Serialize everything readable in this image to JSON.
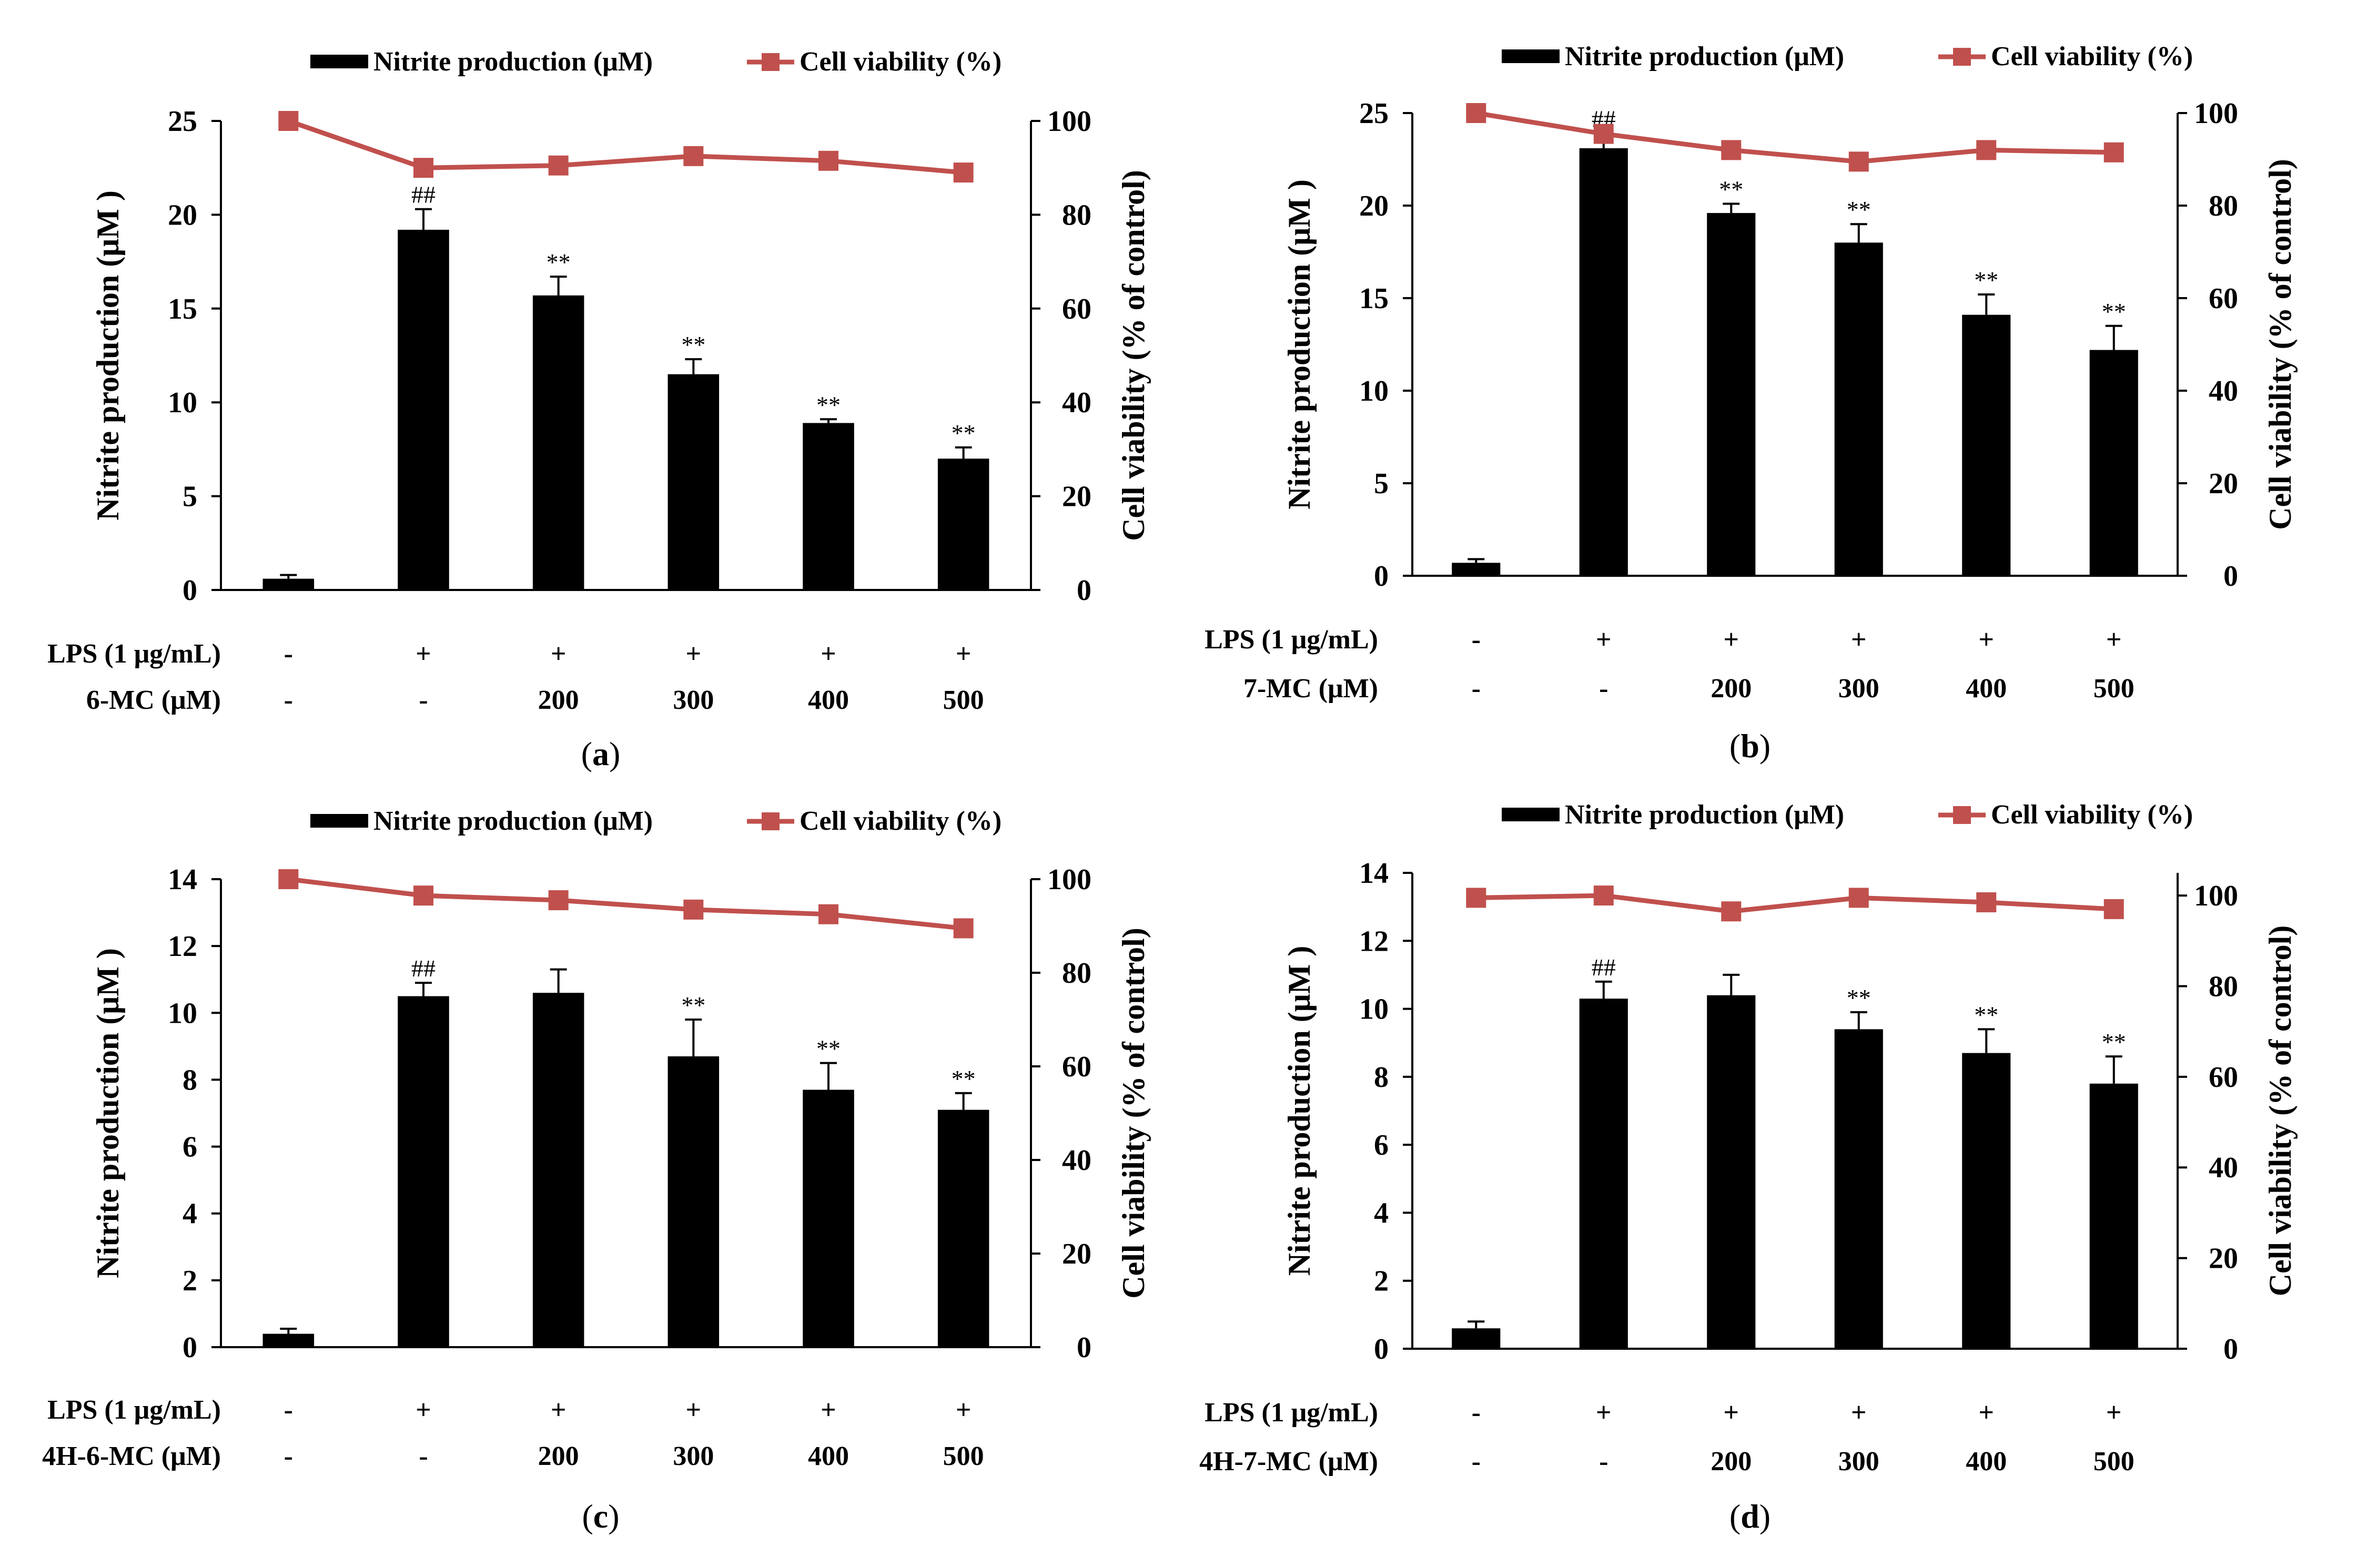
{
  "legend": {
    "bar_label": "Nitrite production (μM)",
    "line_label": "Cell viability (%)"
  },
  "colors": {
    "bar": "#000000",
    "line": "#c0504d",
    "axis": "#000000"
  },
  "chart_data": [
    {
      "type": "bar+line",
      "caption": "a",
      "ylabel_left": "Nitrite production (μM )",
      "ylabel_right": "Cell viability (% of control)",
      "ylim_left": [
        0,
        25
      ],
      "yticks_left": [
        0,
        5,
        10,
        15,
        20,
        25
      ],
      "ylim_right": [
        0,
        100
      ],
      "yticks_right": [
        0,
        20,
        40,
        60,
        80,
        100
      ],
      "row1_label": "LPS (1 μg/mL)",
      "row1": [
        "-",
        "+",
        "+",
        "+",
        "+",
        "+"
      ],
      "row2_label": "6-MC (μM)",
      "row2": [
        "-",
        "-",
        "200",
        "300",
        "400",
        "500"
      ],
      "bars": [
        0.6,
        19.2,
        15.7,
        11.5,
        8.9,
        7.0
      ],
      "bar_err": [
        0.2,
        1.1,
        1.0,
        0.8,
        0.2,
        0.6
      ],
      "bar_marks": [
        "",
        "##",
        "**",
        "**",
        "**",
        "**"
      ],
      "line": [
        100,
        90,
        90.5,
        92.5,
        91.5,
        89
      ],
      "line_err": [
        0,
        0,
        0,
        0,
        1.8,
        0
      ]
    },
    {
      "type": "bar+line",
      "caption": "b",
      "ylabel_left": "Nitrite production (μM )",
      "ylabel_right": "Cell viability (% of control)",
      "ylim_left": [
        0,
        25
      ],
      "yticks_left": [
        0,
        5,
        10,
        15,
        20,
        25
      ],
      "ylim_right": [
        0,
        100
      ],
      "yticks_right": [
        0,
        20,
        40,
        60,
        80,
        100
      ],
      "row1_label": "LPS (1 μg/mL)",
      "row1": [
        "-",
        "+",
        "+",
        "+",
        "+",
        "+"
      ],
      "row2_label": "7-MC (μM)",
      "row2": [
        "-",
        "-",
        "200",
        "300",
        "400",
        "500"
      ],
      "bars": [
        0.7,
        23.1,
        19.6,
        18.0,
        14.1,
        12.2
      ],
      "bar_err": [
        0.2,
        0.8,
        0.5,
        1.0,
        1.1,
        1.3
      ],
      "bar_marks": [
        "",
        "##",
        "**",
        "**",
        "**",
        "**"
      ],
      "line": [
        100,
        95.5,
        92,
        89.5,
        92,
        91.5
      ],
      "line_err": [
        0,
        0,
        0,
        0,
        0,
        0
      ]
    },
    {
      "type": "bar+line",
      "caption": "c",
      "ylabel_left": "Nitrite production (μM )",
      "ylabel_right": "Cell viability (% of control)",
      "ylim_left": [
        0,
        14
      ],
      "yticks_left": [
        0,
        2,
        4,
        6,
        8,
        10,
        12,
        14
      ],
      "ylim_right": [
        0,
        100
      ],
      "yticks_right": [
        0,
        20,
        40,
        60,
        80,
        100
      ],
      "row1_label": "LPS (1 μg/mL)",
      "row1": [
        "-",
        "+",
        "+",
        "+",
        "+",
        "+"
      ],
      "row2_label": "4H-6-MC (μM)",
      "row2": [
        "-",
        "-",
        "200",
        "300",
        "400",
        "500"
      ],
      "bars": [
        0.4,
        10.5,
        10.6,
        8.7,
        7.7,
        7.1
      ],
      "bar_err": [
        0.15,
        0.4,
        0.7,
        1.1,
        0.8,
        0.5
      ],
      "bar_marks": [
        "",
        "##",
        "",
        "**",
        "**",
        "**"
      ],
      "line": [
        100,
        96.5,
        95.5,
        93.5,
        92.5,
        89.5
      ],
      "line_err": [
        0,
        0,
        0,
        0,
        0,
        0
      ]
    },
    {
      "type": "bar+line",
      "caption": "d",
      "ylabel_left": "Nitrite production (μM )",
      "ylabel_right": "Cell viability (% of control)",
      "ylim_left": [
        0,
        14
      ],
      "yticks_left": [
        0,
        2,
        4,
        6,
        8,
        10,
        12,
        14
      ],
      "ylim_right": [
        0,
        105
      ],
      "yticks_right": [
        0,
        20,
        40,
        60,
        80,
        100
      ],
      "row1_label": "LPS (1 μg/mL)",
      "row1": [
        "-",
        "+",
        "+",
        "+",
        "+",
        "+"
      ],
      "row2_label": "4H-7-MC (μM)",
      "row2": [
        "-",
        "-",
        "200",
        "300",
        "400",
        "500"
      ],
      "bars": [
        0.6,
        10.3,
        10.4,
        9.4,
        8.7,
        7.8
      ],
      "bar_err": [
        0.2,
        0.5,
        0.6,
        0.5,
        0.7,
        0.8
      ],
      "bar_marks": [
        "",
        "##",
        "",
        "**",
        "**",
        "**"
      ],
      "line": [
        99.5,
        100,
        96.5,
        99.5,
        98.5,
        97
      ],
      "line_err": [
        0,
        0,
        0,
        0,
        0,
        0
      ]
    }
  ]
}
